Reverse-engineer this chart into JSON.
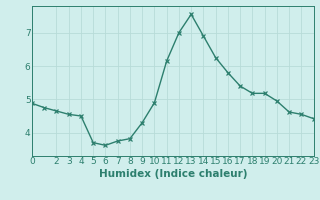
{
  "x": [
    0,
    1,
    2,
    3,
    4,
    5,
    6,
    7,
    8,
    9,
    10,
    11,
    12,
    13,
    14,
    15,
    16,
    17,
    18,
    19,
    20,
    21,
    22,
    23
  ],
  "y": [
    4.88,
    4.75,
    4.65,
    4.55,
    4.5,
    3.7,
    3.62,
    3.75,
    3.82,
    4.3,
    4.9,
    6.15,
    7.0,
    7.55,
    6.9,
    6.25,
    5.8,
    5.4,
    5.18,
    5.18,
    4.95,
    4.62,
    4.55,
    4.42
  ],
  "line_color": "#2d7f6e",
  "bg_color": "#d0eeec",
  "grid_color": "#b8dbd8",
  "xlabel": "Humidex (Indice chaleur)",
  "xlim": [
    0,
    23
  ],
  "ylim": [
    3.3,
    7.8
  ],
  "yticks": [
    4,
    5,
    6,
    7
  ],
  "xticks": [
    0,
    2,
    3,
    4,
    5,
    6,
    7,
    8,
    9,
    10,
    11,
    12,
    13,
    14,
    15,
    16,
    17,
    18,
    19,
    20,
    21,
    22,
    23
  ],
  "marker": "x",
  "marker_size": 3,
  "line_width": 1.0,
  "xlabel_fontsize": 7.5,
  "tick_fontsize": 6.5
}
